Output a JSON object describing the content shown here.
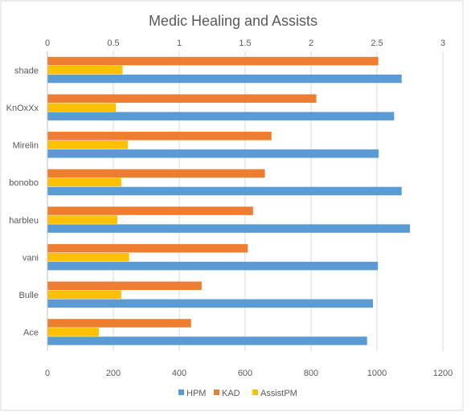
{
  "chart_data": {
    "type": "bar",
    "orientation": "horizontal",
    "title": "Medic Healing and Assists",
    "categories": [
      "shade",
      "KnOxXx",
      "Mirelin",
      "bonobo",
      "harbleu",
      "vani",
      "Bulle",
      "Ace"
    ],
    "series": [
      {
        "name": "HPM",
        "axis": "bottom",
        "color": "#5b9bd5",
        "values": [
          1075,
          1052,
          1005,
          1075,
          1100,
          1003,
          988,
          970
        ]
      },
      {
        "name": "KAD",
        "axis": "top",
        "color": "#ed7d31",
        "values": [
          2.51,
          2.04,
          1.7,
          1.65,
          1.56,
          1.52,
          1.17,
          1.09
        ]
      },
      {
        "name": "AssistPM",
        "axis": "top",
        "color": "#ffc000",
        "values": [
          0.57,
          0.52,
          0.61,
          0.56,
          0.53,
          0.62,
          0.56,
          0.39
        ]
      }
    ],
    "bottom_axis": {
      "min": 0,
      "max": 1200,
      "ticks": [
        "0",
        "200",
        "400",
        "600",
        "800",
        "1000",
        "1200"
      ]
    },
    "top_axis": {
      "min": 0,
      "max": 3,
      "ticks": [
        "0",
        "0.5",
        "1",
        "1.5",
        "2",
        "2.5",
        "3"
      ]
    },
    "grid": "vertical",
    "legend": "bottom"
  }
}
